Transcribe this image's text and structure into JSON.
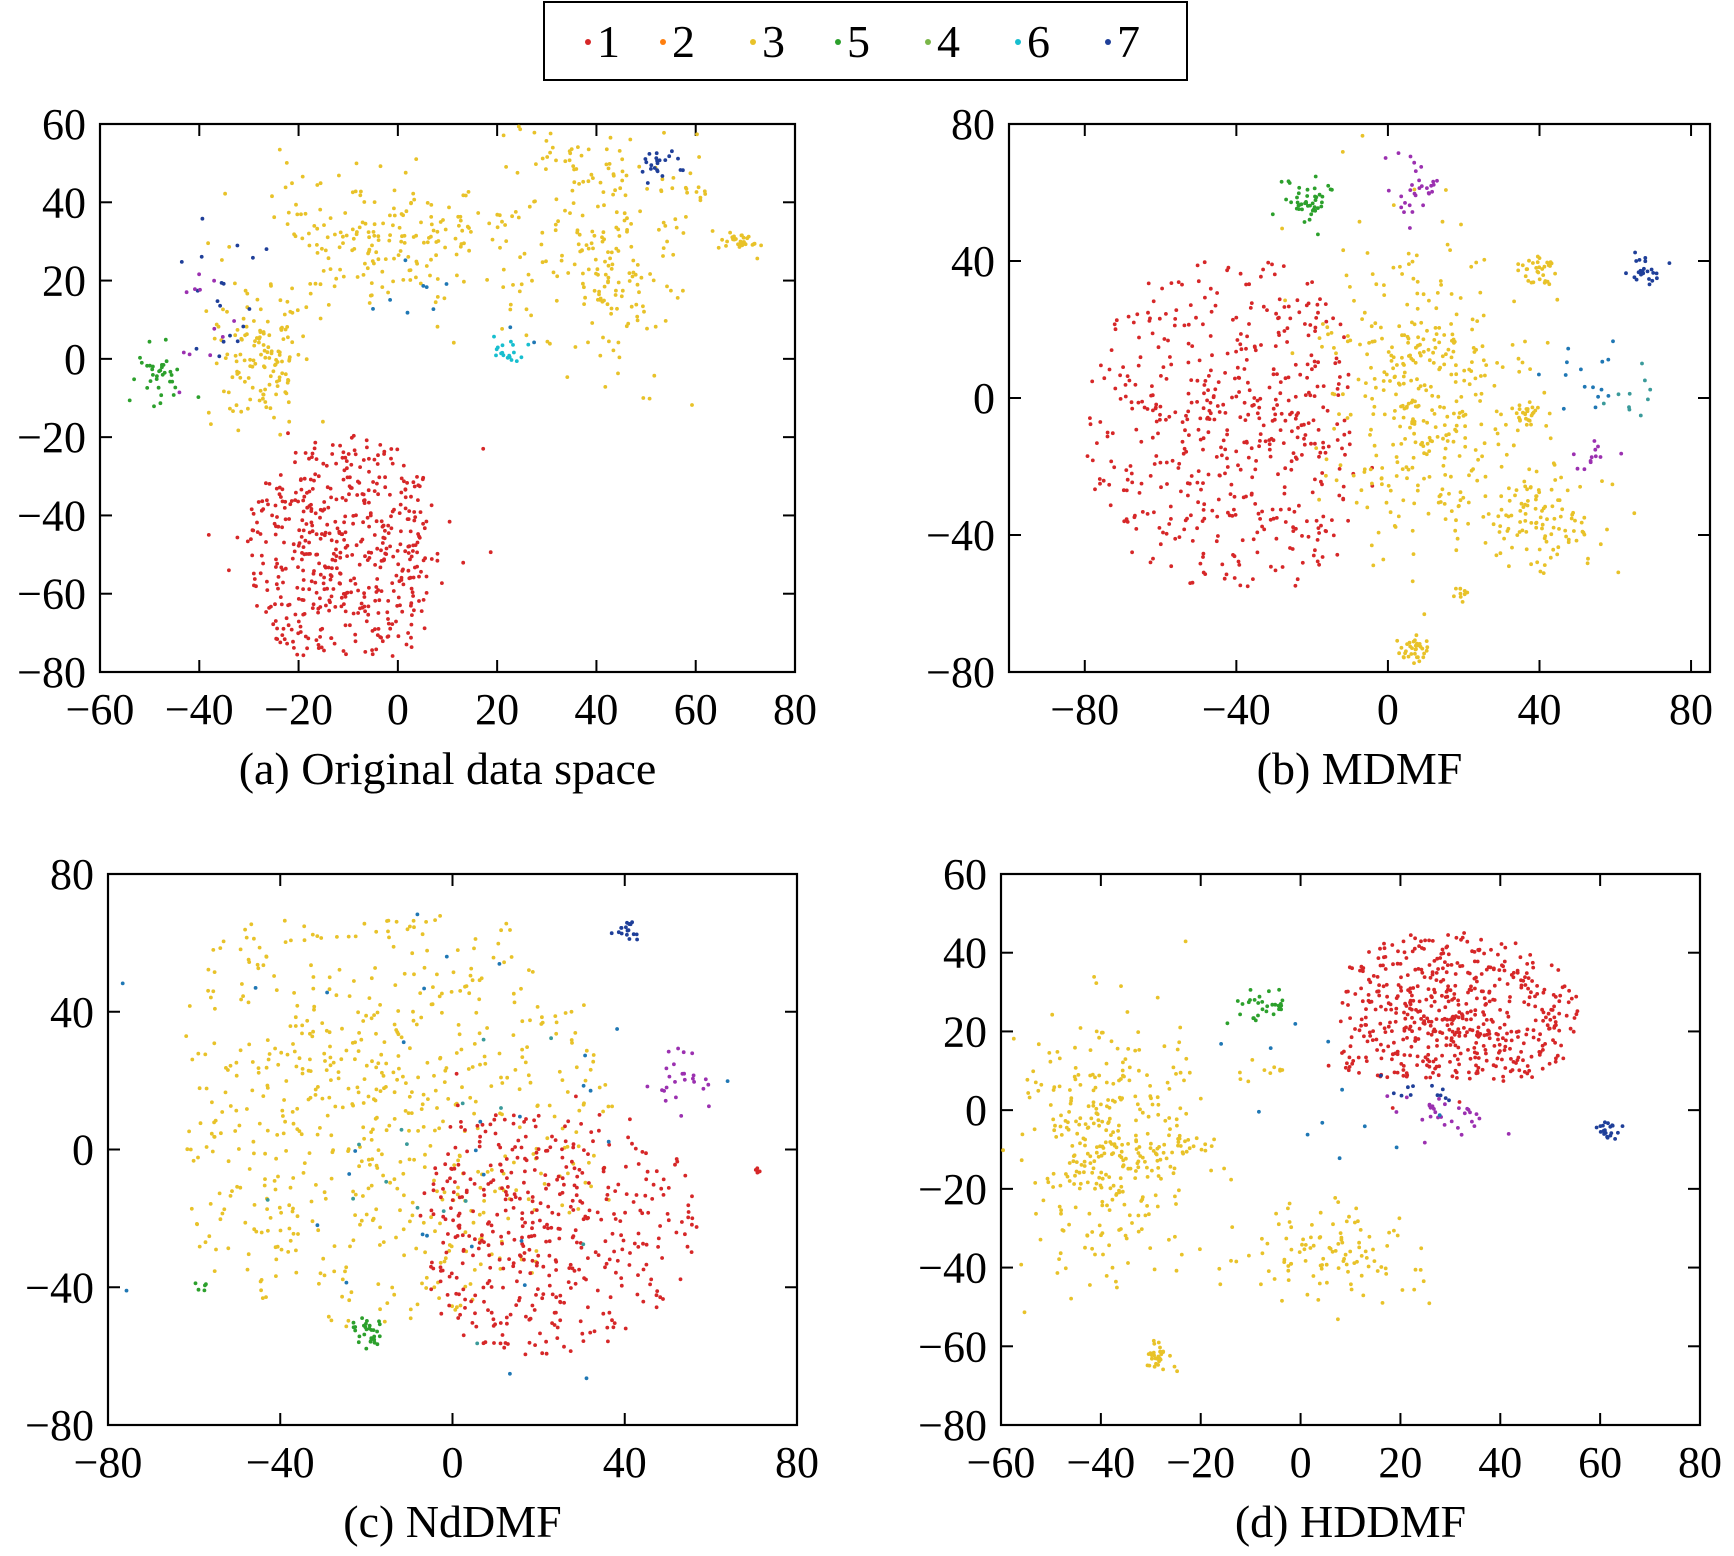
{
  "legend": {
    "entries": [
      {
        "label": "1",
        "color": "#d62728"
      },
      {
        "label": "2",
        "color": "#ff7f0e"
      },
      {
        "label": "3",
        "color": "#e8c229"
      },
      {
        "label": "5",
        "color": "#2ca02c"
      },
      {
        "label": "4",
        "color": "#7ab648"
      },
      {
        "label": "6",
        "color": "#17becf"
      },
      {
        "label": "7",
        "color": "#1f3f99"
      }
    ],
    "extra_colors": {
      "purple": "#9b30b0",
      "steel": "#1f77b4",
      "teal": "#3a9a9a"
    }
  },
  "chart_data": [
    {
      "type": "scatter",
      "caption": "(a) Original data space",
      "xlim": [
        -60,
        80
      ],
      "ylim": [
        -80,
        60
      ],
      "xticks": [
        -60,
        -40,
        -20,
        0,
        20,
        40,
        60,
        80
      ],
      "yticks": [
        -80,
        -60,
        -40,
        -20,
        0,
        20,
        40,
        60
      ],
      "grid": false,
      "clusters": [
        {
          "series": "1",
          "cx": -10,
          "cy": -50,
          "sx": 14,
          "sy": 14,
          "n": 520,
          "xr": [
            -32,
            6
          ],
          "yr": [
            -76,
            -18
          ]
        },
        {
          "series": "3",
          "cx": -27,
          "cy": 0,
          "sx": 5,
          "sy": 8,
          "n": 130
        },
        {
          "series": "3",
          "cx": 0,
          "cy": 30,
          "sx": 17,
          "sy": 9,
          "n": 230
        },
        {
          "series": "3",
          "cx": 43,
          "cy": 25,
          "sx": 7,
          "sy": 16,
          "n": 170
        },
        {
          "series": "3",
          "cx": 35,
          "cy": 52,
          "sx": 8,
          "sy": 5,
          "n": 40
        },
        {
          "series": "3",
          "cx": 69,
          "cy": 30,
          "sx": 2,
          "sy": 1.5,
          "n": 30
        },
        {
          "series": "3",
          "cx": 60,
          "cy": 43,
          "sx": 1.5,
          "sy": 1.2,
          "n": 8
        },
        {
          "series": "5",
          "cx": -48,
          "cy": -5,
          "sx": 2.5,
          "sy": 3.5,
          "n": 35
        },
        {
          "series": "7",
          "cx": 53,
          "cy": 50,
          "sx": 2,
          "sy": 2,
          "n": 22
        },
        {
          "series": "6",
          "cx": 22,
          "cy": 2,
          "sx": 2,
          "sy": 1.5,
          "n": 18
        },
        {
          "series": "7",
          "cx": -35,
          "cy": 15,
          "sx": 5,
          "sy": 10,
          "n": 18
        },
        {
          "series": "purple",
          "cx": -38,
          "cy": 8,
          "sx": 5,
          "sy": 8,
          "n": 12
        },
        {
          "series": "steel",
          "cx": 15,
          "cy": 15,
          "sx": 10,
          "sy": 5,
          "n": 10
        }
      ]
    },
    {
      "type": "scatter",
      "caption": "(b) MDMF",
      "xlim": [
        -100,
        85
      ],
      "ylim": [
        -80,
        80
      ],
      "xticks": [
        -80,
        -40,
        0,
        40,
        80
      ],
      "yticks": [
        -80,
        -40,
        0,
        40,
        80
      ],
      "grid": false,
      "clusters": [
        {
          "series": "1",
          "cx": -40,
          "cy": -8,
          "sx": 17,
          "sy": 18,
          "n": 520,
          "xr": [
            -85,
            -10
          ],
          "yr": [
            -55,
            40
          ]
        },
        {
          "series": "3",
          "cx": 10,
          "cy": 0,
          "sx": 14,
          "sy": 22,
          "n": 380
        },
        {
          "series": "3",
          "cx": 40,
          "cy": -35,
          "sx": 8,
          "sy": 8,
          "n": 110
        },
        {
          "series": "3",
          "cx": 40,
          "cy": 37,
          "sx": 3,
          "sy": 3,
          "n": 30
        },
        {
          "series": "3",
          "cx": 37,
          "cy": -5,
          "sx": 1.8,
          "sy": 2,
          "n": 25
        },
        {
          "series": "3",
          "cx": 7,
          "cy": -73,
          "sx": 2,
          "sy": 2,
          "n": 35
        },
        {
          "series": "3",
          "cx": 20,
          "cy": -58,
          "sx": 2,
          "sy": 1.5,
          "n": 10
        },
        {
          "series": "5",
          "cx": -20,
          "cy": 57,
          "sx": 3,
          "sy": 3.5,
          "n": 45
        },
        {
          "series": "purple",
          "cx": 7,
          "cy": 62,
          "sx": 4,
          "sy": 4,
          "n": 30
        },
        {
          "series": "7",
          "cx": 68,
          "cy": 35,
          "sx": 3,
          "sy": 3,
          "n": 25
        },
        {
          "series": "steel",
          "cx": 55,
          "cy": 5,
          "sx": 5,
          "sy": 6,
          "n": 15
        },
        {
          "series": "purple",
          "cx": 55,
          "cy": -18,
          "sx": 3,
          "sy": 3,
          "n": 12
        },
        {
          "series": "teal",
          "cx": 65,
          "cy": 0,
          "sx": 3,
          "sy": 3,
          "n": 10
        }
      ]
    },
    {
      "type": "scatter",
      "caption": "(c) NdDMF",
      "xlim": [
        -80,
        80
      ],
      "ylim": [
        -80,
        80
      ],
      "xticks": [
        -80,
        -40,
        0,
        40,
        80
      ],
      "yticks": [
        -80,
        -40,
        0,
        40,
        80
      ],
      "grid": false,
      "clusters": [
        {
          "series": "3",
          "cx": -18,
          "cy": 12,
          "sx": 20,
          "sy": 26,
          "n": 640,
          "xr": [
            -62,
            42
          ],
          "yr": [
            -52,
            68
          ]
        },
        {
          "series": "1",
          "cx": 22,
          "cy": -22,
          "sx": 17,
          "sy": 17,
          "n": 450,
          "xr": [
            -5,
            60
          ],
          "yr": [
            -62,
            10
          ]
        },
        {
          "series": "5",
          "cx": -20,
          "cy": -53,
          "sx": 2.5,
          "sy": 2.5,
          "n": 30
        },
        {
          "series": "7",
          "cx": 40,
          "cy": 64,
          "sx": 1.8,
          "sy": 1.5,
          "n": 18
        },
        {
          "series": "purple",
          "cx": 52,
          "cy": 18,
          "sx": 4,
          "sy": 5,
          "n": 25
        },
        {
          "series": "1",
          "cx": 71,
          "cy": -7,
          "sx": 0.5,
          "sy": 0.6,
          "n": 5
        },
        {
          "series": "steel",
          "cx": 0,
          "cy": 0,
          "sx": 28,
          "sy": 30,
          "n": 30
        },
        {
          "series": "teal",
          "cx": 0,
          "cy": -10,
          "sx": 25,
          "sy": 25,
          "n": 15
        },
        {
          "series": "5",
          "cx": -58,
          "cy": -39,
          "sx": 1,
          "sy": 2,
          "n": 5
        }
      ]
    },
    {
      "type": "scatter",
      "caption": "(d) HDDMF",
      "xlim": [
        -60,
        80
      ],
      "ylim": [
        -80,
        60
      ],
      "xticks": [
        -60,
        -40,
        -20,
        0,
        20,
        40,
        60,
        80
      ],
      "yticks": [
        -80,
        -60,
        -40,
        -20,
        0,
        20,
        40,
        60
      ],
      "grid": false,
      "clusters": [
        {
          "series": "1",
          "cx": 30,
          "cy": 23,
          "sx": 12,
          "sy": 10,
          "n": 560,
          "xr": [
            8,
            57
          ],
          "yr": [
            8,
            50
          ]
        },
        {
          "series": "3",
          "cx": -38,
          "cy": -7,
          "sx": 9,
          "sy": 16,
          "n": 330
        },
        {
          "series": "3",
          "cx": -24,
          "cy": -10,
          "sx": 3,
          "sy": 3,
          "n": 30
        },
        {
          "series": "3",
          "cx": 5,
          "cy": -37,
          "sx": 10,
          "sy": 6,
          "n": 110
        },
        {
          "series": "3",
          "cx": -29,
          "cy": -63,
          "sx": 2,
          "sy": 2,
          "n": 30
        },
        {
          "series": "3",
          "cx": -8,
          "cy": 10,
          "sx": 3,
          "sy": 2,
          "n": 10
        },
        {
          "series": "5",
          "cx": -8,
          "cy": 26,
          "sx": 3,
          "sy": 2,
          "n": 30
        },
        {
          "series": "purple",
          "cx": 28,
          "cy": -2,
          "sx": 5,
          "sy": 3,
          "n": 30
        },
        {
          "series": "7",
          "cx": 62,
          "cy": -5,
          "sx": 1.5,
          "sy": 1.2,
          "n": 20
        },
        {
          "series": "7",
          "cx": 25,
          "cy": 5,
          "sx": 5,
          "sy": 2,
          "n": 12
        },
        {
          "series": "steel",
          "cx": 10,
          "cy": 5,
          "sx": 10,
          "sy": 8,
          "n": 12
        }
      ]
    }
  ]
}
